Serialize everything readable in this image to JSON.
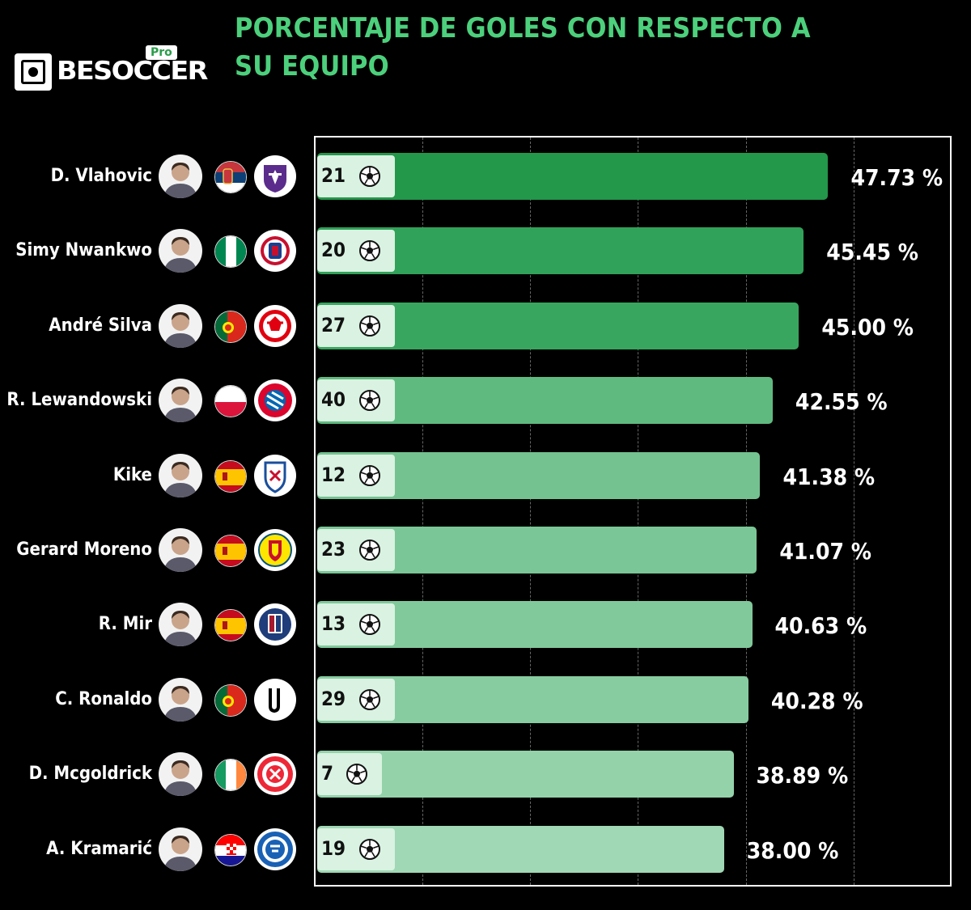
{
  "brand": {
    "word": "BESOCCER",
    "badge": "Pro"
  },
  "title": "PORCENTAJE DE GOLES CON RESPECTO A SU EQUIPO",
  "colors": {
    "background": "#000000",
    "title": "#4cd07c",
    "goals_box": "#d9f2e1"
  },
  "chart_data": {
    "type": "bar",
    "orientation": "horizontal",
    "title": "PORCENTAJE DE GOLES CON RESPECTO A SU EQUIPO",
    "unit": "%",
    "categories": [
      "D. Vlahovic",
      "Simy Nwankwo",
      "André Silva",
      "R. Lewandowski",
      "Kike",
      "Gerard Moreno",
      "R. Mir",
      "C. Ronaldo",
      "D. Mcgoldrick",
      "A. Kramarić"
    ],
    "values": [
      47.73,
      45.45,
      45.0,
      42.55,
      41.38,
      41.07,
      40.63,
      40.28,
      38.89,
      38.0
    ],
    "value_labels": [
      "47.73 %",
      "45.45 %",
      "45.00 %",
      "42.55 %",
      "41.38 %",
      "41.07 %",
      "40.63 %",
      "40.28 %",
      "38.89 %",
      "38.00 %"
    ],
    "goals": [
      "21",
      "20",
      "27",
      "40",
      "12",
      "23",
      "13",
      "29",
      "7",
      "19"
    ],
    "bar_colors": [
      "#23974a",
      "#31a259",
      "#39a65f",
      "#5fba7f",
      "#74c290",
      "#7ac696",
      "#81c99b",
      "#87cca0",
      "#94d2aa",
      "#a0d7b4"
    ],
    "grid": true,
    "player_items": [
      {
        "flag": "serbia-flag-icon",
        "crest": "fiorentina-crest-icon"
      },
      {
        "flag": "nigeria-flag-icon",
        "crest": "crotone-crest-icon"
      },
      {
        "flag": "portugal-flag-icon",
        "crest": "eintracht-frankfurt-crest-icon"
      },
      {
        "flag": "poland-flag-icon",
        "crest": "bayern-munich-crest-icon"
      },
      {
        "flag": "spain-flag-icon",
        "crest": "eibar-crest-icon"
      },
      {
        "flag": "spain-flag-icon",
        "crest": "villarreal-crest-icon"
      },
      {
        "flag": "spain-flag-icon",
        "crest": "huesca-crest-icon"
      },
      {
        "flag": "portugal-flag-icon",
        "crest": "juventus-crest-icon"
      },
      {
        "flag": "ireland-flag-icon",
        "crest": "sheffield-united-crest-icon"
      },
      {
        "flag": "croatia-flag-icon",
        "crest": "hoffenheim-crest-icon"
      }
    ]
  }
}
